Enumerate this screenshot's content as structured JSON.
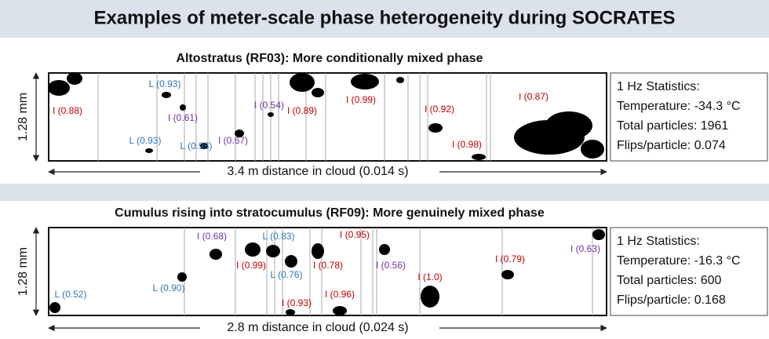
{
  "title": "Examples of meter-scale phase heterogeneity during SOCRATES",
  "panels": [
    {
      "subtitle": "Altostratus (RF03): More conditionally mixed phase",
      "y_label": "1.28 mm",
      "distance_label": "3.4 m distance in cloud (0.014 s)",
      "labels": [
        {
          "text": "I (0.88)",
          "color": "#c00000"
        },
        {
          "text": "L (0.93)",
          "color": "#2e75b6"
        },
        {
          "text": "I (0.61)",
          "color": "#7030a0"
        },
        {
          "text": "L (0.93)",
          "color": "#2e75b6"
        },
        {
          "text": "L (0.98)",
          "color": "#2e75b6"
        },
        {
          "text": "I (0.67)",
          "color": "#7030a0"
        },
        {
          "text": "I (0.54)",
          "color": "#7030a0"
        },
        {
          "text": "I (0.89)",
          "color": "#c00000"
        },
        {
          "text": "I (0.99)",
          "color": "#c00000"
        },
        {
          "text": "I (0.92)",
          "color": "#c00000"
        },
        {
          "text": "I (0.98)",
          "color": "#c00000"
        },
        {
          "text": "I (0.87)",
          "color": "#c00000"
        }
      ],
      "stats": [
        "1 Hz Statistics:",
        "Temperature: -34.3 °C",
        "Total particles: 1961",
        "Flips/particle: 0.074"
      ]
    },
    {
      "subtitle": "Cumulus rising into stratocumulus (RF09): More genuinely mixed phase",
      "y_label": "1.28 mm",
      "distance_label": "2.8 m distance in cloud (0.024 s)",
      "labels": [
        {
          "text": "L (0.52)",
          "color": "#2e75b6"
        },
        {
          "text": "L (0.90)",
          "color": "#2e75b6"
        },
        {
          "text": "I (0.68)",
          "color": "#7030a0"
        },
        {
          "text": "L (0.83)",
          "color": "#2e75b6"
        },
        {
          "text": "I (0.99)",
          "color": "#c00000"
        },
        {
          "text": "L (0.76)",
          "color": "#2e75b6"
        },
        {
          "text": "I (0.95)",
          "color": "#c00000"
        },
        {
          "text": "I (0.78)",
          "color": "#c00000"
        },
        {
          "text": "I (0.56)",
          "color": "#7030a0"
        },
        {
          "text": "I (0.93)",
          "color": "#c00000"
        },
        {
          "text": "I (0.96)",
          "color": "#c00000"
        },
        {
          "text": "I (1.0)",
          "color": "#c00000"
        },
        {
          "text": "I (0.79)",
          "color": "#c00000"
        },
        {
          "text": "I (0.63)",
          "color": "#7030a0"
        }
      ],
      "stats": [
        "1 Hz Statistics:",
        "Temperature: -16.3 °C",
        "Total particles: 600",
        "Flips/particle: 0.168"
      ]
    }
  ]
}
